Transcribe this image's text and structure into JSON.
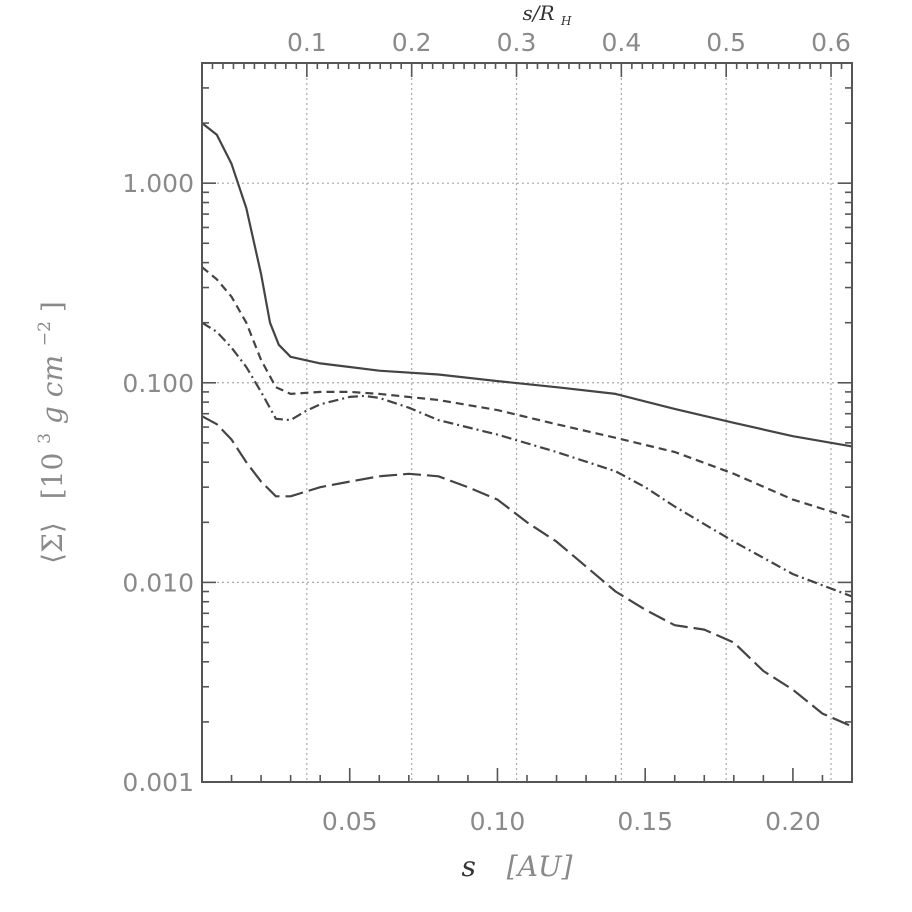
{
  "chart_data": {
    "type": "line",
    "title": "",
    "x_axis": {
      "label": "s",
      "unit": "[AU]",
      "range": [
        0.0,
        0.22
      ],
      "ticks": [
        0.05,
        0.1,
        0.15,
        0.2
      ],
      "tick_labels": [
        "0.05",
        "0.10",
        "0.15",
        "0.20"
      ]
    },
    "top_axis": {
      "label": "s/R",
      "label_sub": "H",
      "range": [
        0.0,
        0.62
      ],
      "ticks": [
        0.1,
        0.2,
        0.3,
        0.4,
        0.5,
        0.6
      ],
      "tick_labels": [
        "0.1",
        "0.2",
        "0.3",
        "0.4",
        "0.5",
        "0.6"
      ]
    },
    "y_axis": {
      "label_prefix": "⟨Σ⟩",
      "label_unit": "[10",
      "label_exp1": "3",
      "label_mid": " g cm",
      "label_exp2": "−2",
      "label_close": "]",
      "scale": "log",
      "range": [
        0.001,
        4.0
      ],
      "ticks": [
        0.001,
        0.01,
        0.1,
        1.0
      ],
      "tick_labels": [
        "0.001",
        "0.010",
        "0.100",
        "1.000"
      ]
    },
    "grid": true,
    "series": [
      {
        "style": "solid",
        "x": [
          0.0,
          0.005,
          0.01,
          0.015,
          0.02,
          0.023,
          0.026,
          0.03,
          0.04,
          0.05,
          0.06,
          0.08,
          0.1,
          0.12,
          0.14,
          0.16,
          0.18,
          0.2,
          0.22
        ],
        "y": [
          2.0,
          1.75,
          1.25,
          0.75,
          0.35,
          0.2,
          0.155,
          0.135,
          0.125,
          0.12,
          0.115,
          0.11,
          0.102,
          0.095,
          0.088,
          0.074,
          0.063,
          0.054,
          0.048
        ]
      },
      {
        "style": "dashed",
        "x": [
          0.0,
          0.005,
          0.01,
          0.015,
          0.02,
          0.025,
          0.03,
          0.04,
          0.05,
          0.06,
          0.08,
          0.1,
          0.12,
          0.14,
          0.16,
          0.18,
          0.2,
          0.22
        ],
        "y": [
          0.38,
          0.33,
          0.27,
          0.2,
          0.13,
          0.095,
          0.088,
          0.09,
          0.09,
          0.088,
          0.082,
          0.073,
          0.062,
          0.053,
          0.045,
          0.035,
          0.026,
          0.021
        ]
      },
      {
        "style": "dash-dot",
        "x": [
          0.0,
          0.005,
          0.01,
          0.015,
          0.02,
          0.025,
          0.03,
          0.035,
          0.04,
          0.05,
          0.055,
          0.06,
          0.07,
          0.08,
          0.1,
          0.12,
          0.14,
          0.15,
          0.16,
          0.18,
          0.2,
          0.22
        ],
        "y": [
          0.2,
          0.18,
          0.15,
          0.12,
          0.09,
          0.066,
          0.065,
          0.072,
          0.078,
          0.085,
          0.086,
          0.084,
          0.075,
          0.065,
          0.055,
          0.045,
          0.036,
          0.03,
          0.024,
          0.016,
          0.011,
          0.0085
        ]
      },
      {
        "style": "long-dash",
        "x": [
          0.0,
          0.005,
          0.01,
          0.015,
          0.02,
          0.025,
          0.03,
          0.04,
          0.05,
          0.06,
          0.07,
          0.08,
          0.09,
          0.1,
          0.11,
          0.12,
          0.13,
          0.14,
          0.15,
          0.16,
          0.17,
          0.18,
          0.19,
          0.2,
          0.21,
          0.22
        ],
        "y": [
          0.068,
          0.062,
          0.052,
          0.04,
          0.032,
          0.027,
          0.027,
          0.03,
          0.032,
          0.034,
          0.035,
          0.034,
          0.03,
          0.026,
          0.02,
          0.016,
          0.012,
          0.009,
          0.0073,
          0.0061,
          0.0058,
          0.005,
          0.0036,
          0.0029,
          0.0022,
          0.0019
        ]
      }
    ]
  }
}
